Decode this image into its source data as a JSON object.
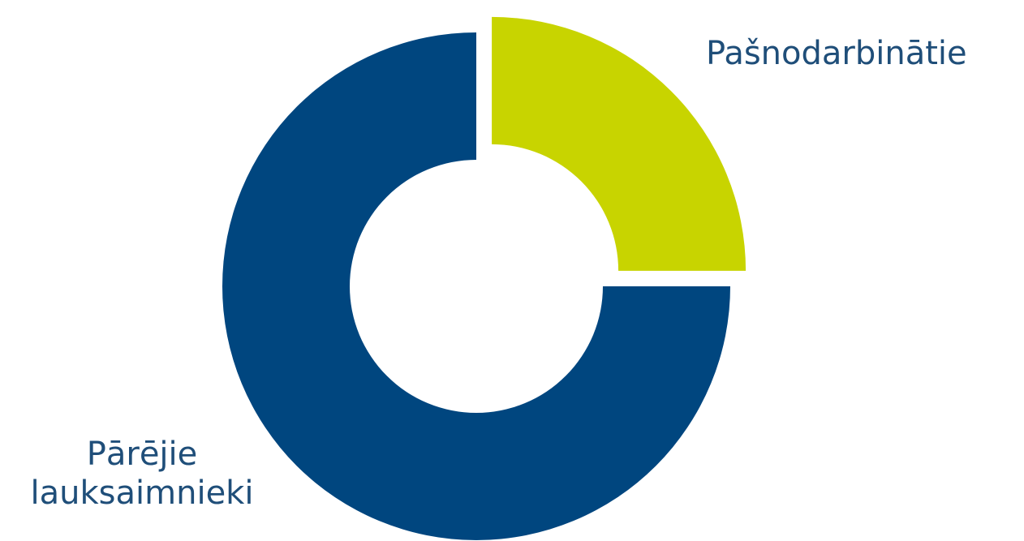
{
  "chart_data": {
    "type": "pie",
    "donut": true,
    "title": "",
    "legend": "none",
    "categories": [
      "Pašnodarbinātie",
      "Pārējie lauksaimnieki"
    ],
    "label_lines": [
      [
        "Pašnodarbinātie"
      ],
      [
        "Pārējie",
        "lauksaimnieki"
      ]
    ],
    "values": [
      25,
      75
    ],
    "exploded": [
      true,
      false
    ],
    "colors": [
      "#c8d400",
      "#00467f"
    ]
  }
}
